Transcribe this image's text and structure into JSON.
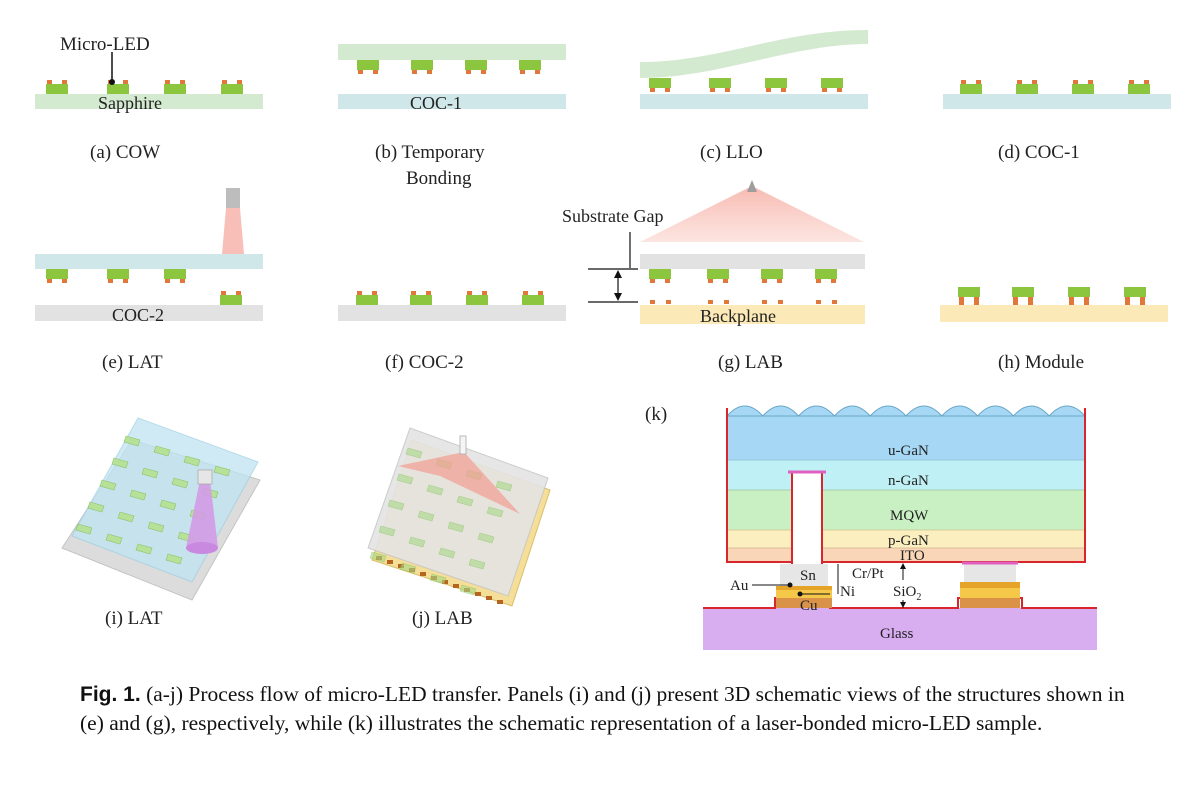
{
  "panels": {
    "a": {
      "chip_label": "Micro-LED",
      "substrate_label": "Sapphire",
      "caption": "(a) COW"
    },
    "b": {
      "substrate_label": "COC-1",
      "caption_line1": "(b) Temporary",
      "caption_line2": "Bonding"
    },
    "c": {
      "caption": "(c) LLO"
    },
    "d": {
      "caption": "(d) COC-1"
    },
    "e": {
      "substrate_label": "COC-2",
      "caption": "(e) LAT"
    },
    "f": {
      "caption": "(f) COC-2"
    },
    "g": {
      "gap_label": "Substrate Gap",
      "substrate_label": "Backplane",
      "caption": "(g) LAB"
    },
    "h": {
      "caption": "(h) Module"
    },
    "i": {
      "caption": "(i) LAT"
    },
    "j": {
      "caption": "(j) LAB"
    },
    "k": {
      "panel_label": "(k)",
      "layers": [
        "u-GaN",
        "n-GaN",
        "MQW",
        "p-GaN",
        "ITO"
      ],
      "labels": {
        "sn": "Sn",
        "crpt": "Cr/Pt",
        "au": "Au",
        "ni": "Ni",
        "sio2": "SiO",
        "sio2_sub": "2",
        "cu": "Cu",
        "glass": "Glass"
      }
    }
  },
  "caption": {
    "fig_no": "Fig. 1.",
    "text": " (a-j) Process flow of micro-LED transfer. Panels (i) and (j) present 3D schematic views of the structures shown in (e) and (g), respectively, while (k) illustrates the schematic representation of a laser-bonded micro-LED sample."
  },
  "colors": {
    "chip_green": "#8cc63f",
    "pad_orange": "#e2773c",
    "sapphire": "#d4ead0",
    "coc1": "#cfe7e8",
    "coc2": "#e2e2e2",
    "backplane": "#fbe9b7",
    "laser_pink": "#f7b4ab",
    "ugan": "#a6d8f5",
    "ngan": "#bff0f5",
    "mqw": "#c9f0c3",
    "pgan": "#fbefbf",
    "ito": "#f9d6b7",
    "glass": "#d9aef0",
    "wall_red": "#d9262c"
  }
}
